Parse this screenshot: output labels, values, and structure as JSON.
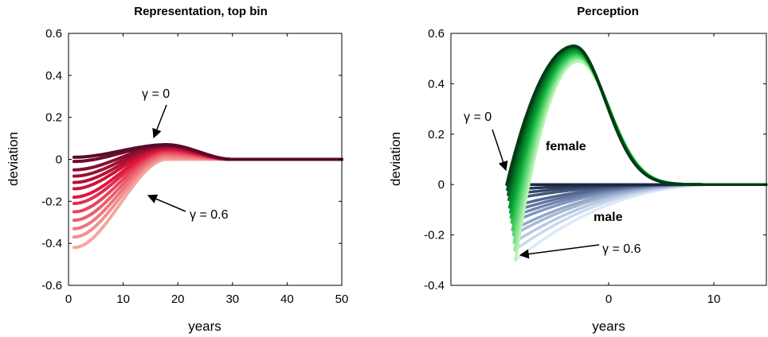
{
  "chart_data": [
    {
      "type": "line",
      "title": "Representation, top bin",
      "xlabel": "years",
      "ylabel": "deviation",
      "xlim": [
        0,
        50
      ],
      "ylim": [
        -0.6,
        0.6
      ],
      "xticks": [
        "0",
        "10",
        "20",
        "30",
        "40",
        "50"
      ],
      "yticks": [
        "-0.6",
        "-0.4",
        "-0.2",
        "0",
        "0.2",
        "0.4",
        "0.6"
      ],
      "gamma_values": [
        0,
        0.05,
        0.1,
        0.15,
        0.2,
        0.25,
        0.3,
        0.35,
        0.4,
        0.45,
        0.5,
        0.55,
        0.6
      ],
      "series_start_values": [
        0.01,
        -0.01,
        -0.05,
        -0.08,
        -0.11,
        -0.14,
        -0.18,
        -0.21,
        -0.25,
        -0.29,
        -0.33,
        -0.37,
        -0.42
      ],
      "series_peak_values": [
        0.07,
        0.068,
        0.065,
        0.062,
        0.058,
        0.054,
        0.049,
        0.043,
        0.036,
        0.028,
        0.019,
        0.009,
        0.0
      ],
      "colors": {
        "start": "#5a0a2a",
        "mid": "#e0163c",
        "end": "#f4a79f"
      },
      "annotations": [
        {
          "text": "γ = 0"
        },
        {
          "text": "γ = 0.6"
        }
      ]
    },
    {
      "type": "line",
      "title": "Perception",
      "xlabel": "years",
      "ylabel": "deviation",
      "xlim": [
        -15,
        15
      ],
      "ylim": [
        -0.4,
        0.6
      ],
      "xticks": [
        "0",
        "10"
      ],
      "yticks": [
        "-0.4",
        "-0.2",
        "0",
        "0.2",
        "0.4",
        "0.6"
      ],
      "gamma_values": [
        0,
        0.05,
        0.1,
        0.15,
        0.2,
        0.25,
        0.3,
        0.35,
        0.4,
        0.45,
        0.5,
        0.55,
        0.6
      ],
      "female": {
        "label": "female",
        "start_values": [
          0.0,
          -0.02,
          -0.04,
          -0.06,
          -0.09,
          -0.11,
          -0.13,
          -0.15,
          -0.18,
          -0.2,
          -0.23,
          -0.26,
          -0.3
        ],
        "peak_values": [
          0.55,
          0.55,
          0.545,
          0.54,
          0.535,
          0.53,
          0.525,
          0.52,
          0.515,
          0.51,
          0.505,
          0.5,
          0.49
        ],
        "colors": {
          "start": "#003c14",
          "mid": "#0fb53c",
          "end": "#b2f5b0"
        }
      },
      "male": {
        "label": "male",
        "start_values": [
          0.0,
          -0.02,
          -0.04,
          -0.06,
          -0.09,
          -0.11,
          -0.13,
          -0.15,
          -0.18,
          -0.2,
          -0.23,
          -0.26,
          -0.3
        ],
        "colors": {
          "start": "#1a2744",
          "mid": "#6f86b0",
          "end": "#dbe9f8"
        }
      },
      "annotations": [
        {
          "text": "γ = 0"
        },
        {
          "text": "γ = 0.6"
        }
      ]
    }
  ]
}
